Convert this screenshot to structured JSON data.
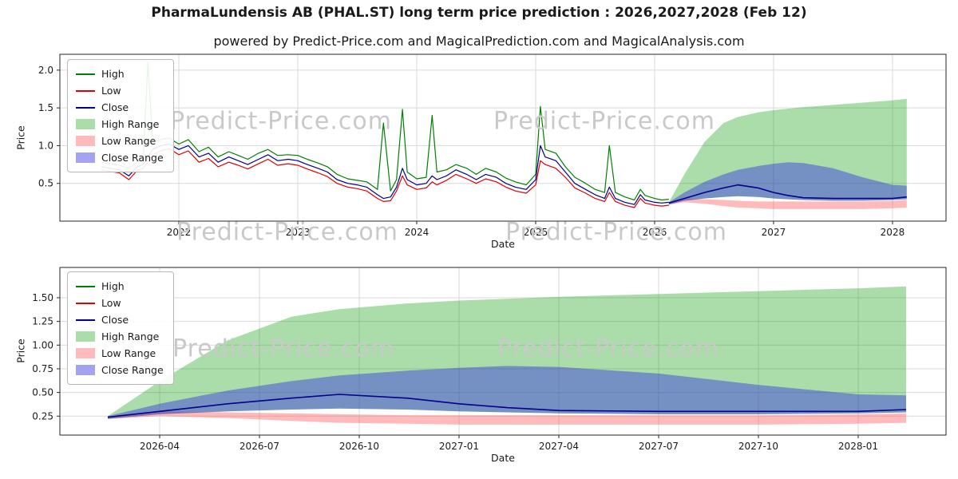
{
  "page": {
    "title": "PharmaLundensis AB (PHAL.ST) long term price prediction : 2026,2027,2028 (Feb 12)",
    "subtitle": "powered by Predict-Price.com and MagicalPrediction.com and MagicalAnalysis.com",
    "watermark": "Predict-Price.com"
  },
  "colors": {
    "high": "#008000",
    "low": "#e00000",
    "close": "#00008b",
    "high_range": "rgba(0,153,0,0.33)",
    "low_range": "rgba(255,77,77,0.38)",
    "close_range": "rgba(51,51,221,0.45)"
  },
  "chart_data": [
    {
      "type": "line",
      "title": "",
      "xlabel": "Date",
      "ylabel": "Price",
      "grid": true,
      "legend_position": "upper left",
      "xlim": [
        2021.0,
        2028.45
      ],
      "ylim": [
        0.0,
        2.21
      ],
      "xticks": [
        {
          "v": 2022,
          "label": "2022"
        },
        {
          "v": 2023,
          "label": "2023"
        },
        {
          "v": 2024,
          "label": "2024"
        },
        {
          "v": 2025,
          "label": "2025"
        },
        {
          "v": 2026,
          "label": "2026"
        },
        {
          "v": 2027,
          "label": "2027"
        },
        {
          "v": 2028,
          "label": "2028"
        }
      ],
      "yticks": [
        {
          "v": 0.5,
          "label": "0.5"
        },
        {
          "v": 1.0,
          "label": "1.0"
        },
        {
          "v": 1.5,
          "label": "1.5"
        },
        {
          "v": 2.0,
          "label": "2.0"
        }
      ],
      "legend": [
        {
          "label": "High",
          "swatch": "line",
          "color": "high"
        },
        {
          "label": "Low",
          "swatch": "line",
          "color": "low"
        },
        {
          "label": "Close",
          "swatch": "line",
          "color": "close"
        },
        {
          "label": "High Range",
          "swatch": "patch",
          "color": "high_range"
        },
        {
          "label": "Low Range",
          "swatch": "patch",
          "color": "low_range"
        },
        {
          "label": "Close Range",
          "swatch": "patch",
          "color": "close_range"
        }
      ],
      "history": {
        "x": [
          2021.35,
          2021.42,
          2021.5,
          2021.58,
          2021.65,
          2021.7,
          2021.74,
          2021.78,
          2021.85,
          2021.92,
          2022.0,
          2022.08,
          2022.17,
          2022.25,
          2022.33,
          2022.42,
          2022.5,
          2022.58,
          2022.67,
          2022.75,
          2022.83,
          2022.92,
          2023.0,
          2023.08,
          2023.17,
          2023.25,
          2023.33,
          2023.42,
          2023.5,
          2023.58,
          2023.67,
          2023.72,
          2023.78,
          2023.83,
          2023.88,
          2023.92,
          2024.0,
          2024.08,
          2024.13,
          2024.17,
          2024.25,
          2024.33,
          2024.42,
          2024.5,
          2024.58,
          2024.67,
          2024.75,
          2024.83,
          2024.92,
          2025.0,
          2025.04,
          2025.08,
          2025.17,
          2025.25,
          2025.33,
          2025.42,
          2025.5,
          2025.58,
          2025.62,
          2025.67,
          2025.75,
          2025.83,
          2025.88,
          2025.92,
          2026.0,
          2026.06,
          2026.12
        ],
        "high": [
          0.78,
          0.76,
          0.74,
          0.7,
          0.78,
          0.82,
          2.1,
          1.05,
          1.08,
          1.1,
          1.02,
          1.08,
          0.92,
          0.98,
          0.85,
          0.92,
          0.87,
          0.82,
          0.9,
          0.95,
          0.87,
          0.88,
          0.87,
          0.82,
          0.77,
          0.72,
          0.62,
          0.56,
          0.54,
          0.52,
          0.42,
          1.3,
          0.4,
          0.55,
          1.48,
          0.65,
          0.56,
          0.58,
          1.4,
          0.65,
          0.68,
          0.75,
          0.7,
          0.62,
          0.7,
          0.65,
          0.57,
          0.52,
          0.48,
          0.62,
          1.52,
          0.95,
          0.9,
          0.72,
          0.58,
          0.5,
          0.42,
          0.38,
          1.0,
          0.38,
          0.32,
          0.28,
          0.42,
          0.34,
          0.3,
          0.28,
          0.29
        ],
        "low": [
          0.68,
          0.66,
          0.64,
          0.55,
          0.67,
          0.7,
          0.78,
          0.88,
          0.93,
          0.96,
          0.88,
          0.93,
          0.78,
          0.83,
          0.72,
          0.78,
          0.74,
          0.69,
          0.76,
          0.82,
          0.74,
          0.76,
          0.74,
          0.69,
          0.64,
          0.59,
          0.5,
          0.45,
          0.43,
          0.4,
          0.3,
          0.26,
          0.27,
          0.4,
          0.6,
          0.48,
          0.42,
          0.44,
          0.52,
          0.48,
          0.54,
          0.62,
          0.56,
          0.5,
          0.56,
          0.52,
          0.45,
          0.4,
          0.37,
          0.48,
          0.8,
          0.75,
          0.7,
          0.58,
          0.44,
          0.37,
          0.3,
          0.26,
          0.38,
          0.26,
          0.21,
          0.18,
          0.3,
          0.24,
          0.21,
          0.2,
          0.21
        ],
        "close": [
          0.72,
          0.7,
          0.68,
          0.6,
          0.72,
          0.75,
          0.85,
          0.95,
          1.0,
          1.02,
          0.95,
          1.0,
          0.85,
          0.9,
          0.78,
          0.85,
          0.8,
          0.75,
          0.82,
          0.88,
          0.8,
          0.82,
          0.8,
          0.75,
          0.7,
          0.65,
          0.55,
          0.5,
          0.48,
          0.45,
          0.35,
          0.3,
          0.32,
          0.45,
          0.7,
          0.55,
          0.48,
          0.5,
          0.6,
          0.55,
          0.6,
          0.68,
          0.62,
          0.55,
          0.62,
          0.58,
          0.5,
          0.45,
          0.42,
          0.55,
          1.0,
          0.85,
          0.8,
          0.65,
          0.5,
          0.42,
          0.35,
          0.3,
          0.45,
          0.3,
          0.25,
          0.22,
          0.35,
          0.28,
          0.25,
          0.24,
          0.25
        ]
      },
      "forecast": {
        "x": [
          2026.12,
          2026.25,
          2026.42,
          2026.58,
          2026.7,
          2026.87,
          2027.0,
          2027.12,
          2027.25,
          2027.5,
          2027.75,
          2028.0,
          2028.12
        ],
        "high_upper": [
          0.25,
          0.62,
          1.05,
          1.3,
          1.38,
          1.44,
          1.47,
          1.49,
          1.51,
          1.54,
          1.57,
          1.6,
          1.62
        ],
        "close_upper": [
          0.25,
          0.38,
          0.52,
          0.62,
          0.68,
          0.73,
          0.76,
          0.78,
          0.77,
          0.7,
          0.58,
          0.48,
          0.47
        ],
        "close": [
          0.24,
          0.3,
          0.38,
          0.44,
          0.48,
          0.44,
          0.38,
          0.34,
          0.31,
          0.3,
          0.3,
          0.3,
          0.32
        ],
        "close_lower": [
          0.22,
          0.27,
          0.3,
          0.32,
          0.33,
          0.32,
          0.3,
          0.29,
          0.28,
          0.27,
          0.27,
          0.28,
          0.29
        ],
        "low_upper": [
          0.24,
          0.3,
          0.29,
          0.28,
          0.27,
          0.26,
          0.26,
          0.26,
          0.26,
          0.26,
          0.26,
          0.27,
          0.28
        ],
        "low_lower": [
          0.22,
          0.25,
          0.23,
          0.2,
          0.18,
          0.17,
          0.16,
          0.16,
          0.16,
          0.16,
          0.16,
          0.17,
          0.18
        ]
      }
    },
    {
      "type": "area",
      "title": "",
      "xlabel": "Date",
      "ylabel": "Price",
      "grid": true,
      "legend_position": "upper left",
      "forecast_same_as": 0,
      "xlim": [
        2026.0,
        2028.22
      ],
      "ylim": [
        0.05,
        1.82
      ],
      "xticks": [
        {
          "v": 2026.25,
          "label": "2026-04"
        },
        {
          "v": 2026.5,
          "label": "2026-07"
        },
        {
          "v": 2026.75,
          "label": "2026-10"
        },
        {
          "v": 2027.0,
          "label": "2027-01"
        },
        {
          "v": 2027.25,
          "label": "2027-04"
        },
        {
          "v": 2027.5,
          "label": "2027-07"
        },
        {
          "v": 2027.75,
          "label": "2027-10"
        },
        {
          "v": 2028.0,
          "label": "2028-01"
        }
      ],
      "yticks": [
        {
          "v": 0.25,
          "label": "0.25"
        },
        {
          "v": 0.5,
          "label": "0.50"
        },
        {
          "v": 0.75,
          "label": "0.75"
        },
        {
          "v": 1.0,
          "label": "1.00"
        },
        {
          "v": 1.25,
          "label": "1.25"
        },
        {
          "v": 1.5,
          "label": "1.50"
        }
      ],
      "legend": [
        {
          "label": "High",
          "swatch": "line",
          "color": "high"
        },
        {
          "label": "Low",
          "swatch": "line",
          "color": "low"
        },
        {
          "label": "Close",
          "swatch": "line",
          "color": "close"
        },
        {
          "label": "High Range",
          "swatch": "patch",
          "color": "high_range"
        },
        {
          "label": "Low Range",
          "swatch": "patch",
          "color": "low_range"
        },
        {
          "label": "Close Range",
          "swatch": "patch",
          "color": "close_range"
        }
      ]
    }
  ]
}
